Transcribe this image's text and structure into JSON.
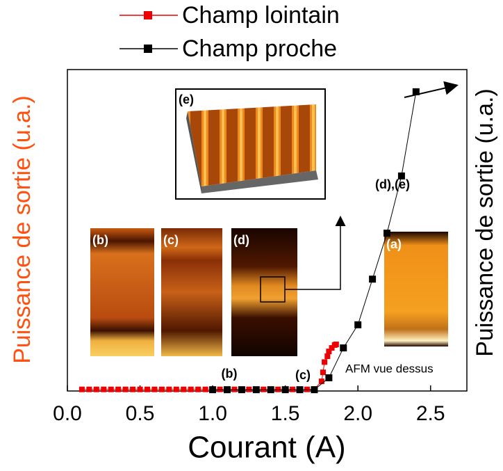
{
  "chart_data": {
    "type": "line",
    "x_label": "Courant (A)",
    "y_label": "Puissance de sortie (u.a.)",
    "y2_label": "Puissance de sortie (u.a.)",
    "xlim": [
      0,
      2.75
    ],
    "xticks": [
      {
        "value": 0,
        "label": "0.0"
      },
      0.5,
      {
        "value": 1,
        "label": "1.0"
      },
      1.5,
      {
        "value": 2,
        "label": "2.0"
      },
      2.5
    ],
    "ylim": [
      0,
      100
    ],
    "series": [
      {
        "name": "Champ lointain",
        "color": "#ee0000",
        "x": [
          0.1,
          0.15,
          0.2,
          0.25,
          0.3,
          0.35,
          0.4,
          0.45,
          0.5,
          0.55,
          0.6,
          0.65,
          0.7,
          0.75,
          0.8,
          0.85,
          0.9,
          0.95,
          1.0,
          1.05,
          1.1,
          1.15,
          1.2,
          1.25,
          1.3,
          1.35,
          1.4,
          1.45,
          1.5,
          1.55,
          1.6,
          1.65,
          1.7,
          1.75,
          1.76,
          1.77,
          1.79,
          1.8,
          1.82,
          1.84,
          1.85
        ],
        "values": [
          0.5,
          0.5,
          0.5,
          0.5,
          0.5,
          0.5,
          0.5,
          0.5,
          0.5,
          0.5,
          0.5,
          0.5,
          0.5,
          0.5,
          0.5,
          0.5,
          0.5,
          0.5,
          0.5,
          0.5,
          0.5,
          0.5,
          0.5,
          0.5,
          0.5,
          0.5,
          0.5,
          0.5,
          0.5,
          0.5,
          0.5,
          0.5,
          0.6,
          3,
          5.8,
          9,
          10.8,
          12.3,
          13.4,
          14.3,
          14.5
        ]
      },
      {
        "name": "Champ proche",
        "color": "#000000",
        "x": [
          1.0,
          1.1,
          1.2,
          1.3,
          1.4,
          1.5,
          1.6,
          1.7,
          1.8,
          1.9,
          2.0,
          2.1,
          2.2,
          2.3,
          2.4
        ],
        "values": [
          0.4,
          0.4,
          0.4,
          0.4,
          0.4,
          0.4,
          0.4,
          0.4,
          4.1,
          13.4,
          20.6,
          34.8,
          49.1,
          66.9,
          93.1
        ]
      }
    ],
    "annotations": [
      "(b)",
      "(c)",
      "(d),(e)",
      "AFM vue dessus"
    ],
    "inset_labels": [
      "(a)",
      "(b)",
      "(c)",
      "(d)",
      "(e)"
    ]
  }
}
